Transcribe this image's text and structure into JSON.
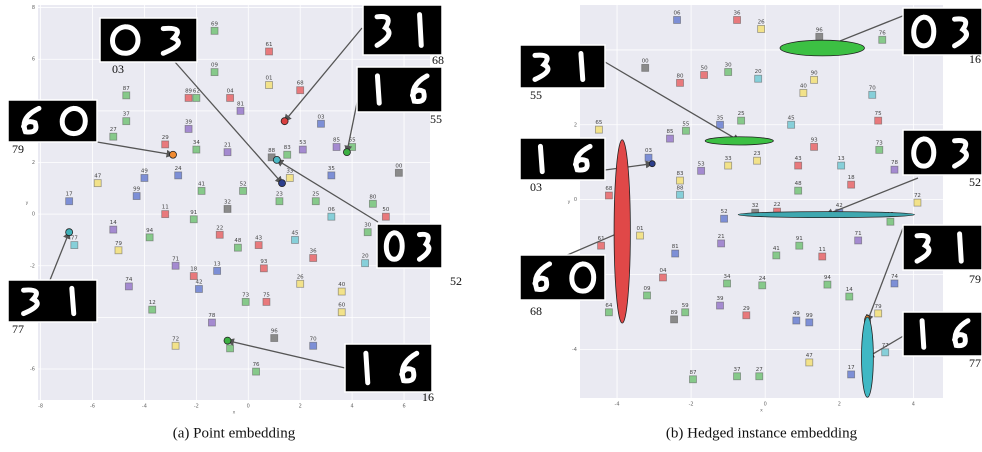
{
  "chart_data": [
    {
      "type": "scatter",
      "caption": "(a) Point embedding",
      "xlabel": "x",
      "ylabel": "y",
      "xlim": [
        -8.1,
        7
      ],
      "ylim": [
        -7.2,
        8.1
      ],
      "xticks": [
        -8,
        -6,
        -4,
        -2,
        0,
        2,
        4,
        6
      ],
      "yticks": [
        -6,
        -4,
        -2,
        0,
        2,
        4,
        6,
        8
      ],
      "grid": true,
      "labels": [
        "69",
        "61",
        "09",
        "87",
        "89",
        "62",
        "01",
        "68",
        "04",
        "81",
        "37",
        "03",
        "27",
        "39",
        "29",
        "34",
        "21",
        "85",
        "65",
        "88",
        "83",
        "53",
        "47",
        "49",
        "24",
        "33",
        "35",
        "00",
        "41",
        "52",
        "99",
        "23",
        "25",
        "80",
        "17",
        "11",
        "91",
        "32",
        "06",
        "50",
        "14",
        "94",
        "22",
        "30",
        "48",
        "43",
        "45",
        "79",
        "36",
        "20",
        "71",
        "93",
        "18",
        "13",
        "77",
        "74",
        "26",
        "42",
        "40",
        "12",
        "73",
        "75",
        "60",
        "78",
        "72",
        "96",
        "70",
        "76",
        "16"
      ],
      "x": [
        -1.3,
        0.8,
        -1.3,
        -4.7,
        -2.3,
        -2.0,
        0.8,
        2.0,
        -0.7,
        -0.3,
        -4.7,
        2.8,
        -5.2,
        -2.3,
        -3.2,
        -2.0,
        -0.8,
        3.4,
        4.0,
        0.9,
        1.5,
        2.1,
        -5.8,
        -4.0,
        -2.7,
        1.6,
        3.2,
        5.8,
        -1.8,
        -0.2,
        -4.3,
        1.2,
        2.6,
        4.8,
        -6.9,
        -3.2,
        -2.1,
        -0.8,
        3.2,
        5.3,
        -5.2,
        -3.8,
        -1.1,
        4.6,
        -0.4,
        0.4,
        1.8,
        -5.0,
        2.5,
        4.5,
        -2.8,
        0.6,
        -2.1,
        -1.2,
        -6.7,
        -4.6,
        2.0,
        -1.9,
        3.6,
        -3.7,
        -0.1,
        0.7,
        3.6,
        -1.4,
        -2.8,
        1.0,
        2.5,
        0.3,
        -0.7
      ],
      "y": [
        7.1,
        6.3,
        5.5,
        4.6,
        4.5,
        4.5,
        5.0,
        4.8,
        4.5,
        4.0,
        3.6,
        3.5,
        3.0,
        3.3,
        2.7,
        2.5,
        2.4,
        2.6,
        2.6,
        2.2,
        2.3,
        2.5,
        1.2,
        1.4,
        1.5,
        1.4,
        1.5,
        1.6,
        0.9,
        0.9,
        0.7,
        0.5,
        0.5,
        0.4,
        0.5,
        0.0,
        -0.2,
        0.2,
        -0.1,
        -0.1,
        -0.6,
        -0.9,
        -0.8,
        -0.7,
        -1.3,
        -1.2,
        -1.0,
        -1.4,
        -1.7,
        -1.9,
        -2.0,
        -2.1,
        -2.4,
        -2.2,
        -1.2,
        -2.8,
        -2.7,
        -2.9,
        -3.0,
        -3.7,
        -3.4,
        -3.4,
        -3.8,
        -4.2,
        -5.1,
        -4.8,
        -5.1,
        -6.1,
        -5.2
      ],
      "colors": [
        "#86c98a",
        "#e8797c",
        "#86c98a",
        "#86c98a",
        "#e8797c",
        "#86c98a",
        "#f2e28a",
        "#e8797c",
        "#e8797c",
        "#a48ad0",
        "#86c98a",
        "#7d8fd6",
        "#86c98a",
        "#a48ad0",
        "#e8797c",
        "#86c98a",
        "#a48ad0",
        "#a48ad0",
        "#86c98a",
        "#8a8a8a",
        "#86c98a",
        "#a48ad0",
        "#f2e28a",
        "#7d8fd6",
        "#7d8fd6",
        "#f2e28a",
        "#7d8fd6",
        "#8a8a8a",
        "#86c98a",
        "#86c98a",
        "#7d8fd6",
        "#86c98a",
        "#86c98a",
        "#86c98a",
        "#7d8fd6",
        "#e8797c",
        "#86c98a",
        "#8a8a8a",
        "#86cfd9",
        "#e8797c",
        "#a48ad0",
        "#86c98a",
        "#e8797c",
        "#86c98a",
        "#86c98a",
        "#e8797c",
        "#86cfd9",
        "#f2e28a",
        "#e8797c",
        "#86cfd9",
        "#a48ad0",
        "#e8797c",
        "#e8797c",
        "#7d8fd6",
        "#86cfd9",
        "#a48ad0",
        "#f2e28a",
        "#7d8fd6",
        "#f2e28a",
        "#86c98a",
        "#86c98a",
        "#e8797c",
        "#f2e28a",
        "#a48ad0",
        "#f2e28a",
        "#8a8a8a",
        "#7d8fd6",
        "#86c98a",
        "#86c98a"
      ],
      "highlights": [
        {
          "label": "03",
          "x": 1.3,
          "y": 1.2,
          "color": "#2c3e8c"
        },
        {
          "label": "68",
          "x": 1.4,
          "y": 3.6,
          "color": "#d94040"
        },
        {
          "label": "55",
          "x": 3.8,
          "y": 2.4,
          "color": "#3cb043"
        },
        {
          "label": "79",
          "x": -2.9,
          "y": 2.3,
          "color": "#f08a30"
        },
        {
          "label": "52",
          "x": 1.1,
          "y": 2.1,
          "color": "#4cb8c4"
        },
        {
          "label": "77",
          "x": -6.9,
          "y": -0.7,
          "color": "#3fb0b8"
        },
        {
          "label": "16",
          "x": -0.8,
          "y": -4.9,
          "color": "#3cb043"
        }
      ]
    },
    {
      "type": "scatter",
      "caption": "(b) Hedged instance embedding",
      "xlabel": "x",
      "ylabel": "y",
      "xlim": [
        -5,
        4.8
      ],
      "ylim": [
        -5.3,
        5.2
      ],
      "xticks": [
        -4,
        -2,
        0,
        2,
        4
      ],
      "yticks": [
        -4,
        -2,
        0,
        2,
        4
      ],
      "grid": true,
      "labels": [
        "06",
        "36",
        "26",
        "96",
        "76",
        "00",
        "80",
        "50",
        "30",
        "20",
        "90",
        "40",
        "70",
        "65",
        "85",
        "55",
        "35",
        "25",
        "45",
        "75",
        "93",
        "73",
        "03",
        "53",
        "33",
        "23",
        "43",
        "13",
        "78",
        "83",
        "88",
        "68",
        "18",
        "48",
        "32",
        "22",
        "42",
        "72",
        "12",
        "52",
        "01",
        "61",
        "21",
        "91",
        "71",
        "81",
        "41",
        "11",
        "04",
        "34",
        "24",
        "94",
        "74",
        "09",
        "64",
        "59",
        "89",
        "39",
        "29",
        "49",
        "99",
        "14",
        "79",
        "77",
        "47",
        "17",
        "87",
        "37",
        "27"
      ],
      "x": [
        -2.38,
        -0.76,
        -0.11,
        1.46,
        3.16,
        -3.24,
        -2.3,
        -1.65,
        -1.0,
        -0.19,
        1.32,
        1.03,
        2.89,
        -4.49,
        -2.57,
        -2.14,
        -1.22,
        -0.65,
        0.7,
        3.05,
        1.32,
        3.08,
        -3.15,
        -1.73,
        -1.0,
        -0.22,
        0.89,
        2.05,
        3.49,
        -2.3,
        -2.3,
        -4.22,
        2.32,
        0.89,
        -0.27,
        0.32,
        2.0,
        4.11,
        3.38,
        -1.11,
        -3.38,
        -4.43,
        -1.19,
        0.92,
        2.51,
        -2.43,
        0.3,
        1.54,
        -2.76,
        -1.03,
        -0.08,
        1.68,
        3.49,
        -3.19,
        -4.22,
        -2.16,
        -2.46,
        -1.22,
        -0.51,
        0.84,
        1.19,
        2.27,
        3.05,
        3.24,
        1.19,
        2.32,
        -1.95,
        -0.76,
        -0.16
      ],
      "y": [
        4.8,
        4.8,
        4.56,
        4.35,
        4.27,
        3.52,
        3.12,
        3.33,
        3.41,
        3.23,
        3.2,
        2.85,
        2.8,
        1.87,
        1.63,
        1.84,
        2.0,
        2.11,
        2.0,
        2.11,
        1.41,
        1.33,
        1.12,
        0.77,
        0.91,
        1.04,
        0.91,
        0.91,
        0.8,
        0.51,
        0.13,
        0.11,
        0.4,
        0.24,
        -0.35,
        -0.32,
        -0.35,
        -0.08,
        -0.59,
        -0.51,
        -0.96,
        -1.23,
        -1.17,
        -1.23,
        -1.09,
        -1.44,
        -1.49,
        -1.52,
        -2.08,
        -2.24,
        -2.29,
        -2.27,
        -2.24,
        -2.56,
        -3.01,
        -3.01,
        -3.2,
        -2.83,
        -3.09,
        -3.23,
        -3.28,
        -2.59,
        -3.04,
        -4.08,
        -4.35,
        -4.67,
        -4.8,
        -4.72,
        -4.72
      ],
      "colors": [
        "#7d8fd6",
        "#e8797c",
        "#f2e28a",
        "#8a8a8a",
        "#86c98a",
        "#8a8a8a",
        "#e8797c",
        "#e8797c",
        "#86c98a",
        "#86cfd9",
        "#f2e28a",
        "#f2e28a",
        "#86cfd9",
        "#f2e28a",
        "#a48ad0",
        "#86c98a",
        "#7d8fd6",
        "#86c98a",
        "#86cfd9",
        "#e8797c",
        "#e8797c",
        "#86c98a",
        "#7d8fd6",
        "#a48ad0",
        "#f2e28a",
        "#f2e28a",
        "#e8797c",
        "#86cfd9",
        "#a48ad0",
        "#f2e28a",
        "#86cfd9",
        "#e8797c",
        "#e8797c",
        "#86c98a",
        "#8a8a8a",
        "#e8797c",
        "#7d8fd6",
        "#f2e28a",
        "#86c98a",
        "#7d8fd6",
        "#f2e28a",
        "#e8797c",
        "#a48ad0",
        "#86c98a",
        "#a48ad0",
        "#7d8fd6",
        "#86c98a",
        "#e8797c",
        "#e8797c",
        "#86c98a",
        "#86c98a",
        "#86c98a",
        "#7d8fd6",
        "#86c98a",
        "#86c98a",
        "#86c98a",
        "#8a8a8a",
        "#a48ad0",
        "#e8797c",
        "#7d8fd6",
        "#7d8fd6",
        "#86c98a",
        "#f2e28a",
        "#86cfd9",
        "#f2e28a",
        "#7d8fd6",
        "#86c98a",
        "#86c98a",
        "#86c98a"
      ],
      "highlights": [
        {
          "label": "16",
          "x": 1.54,
          "y": 4.05,
          "rx": 1.14,
          "ry": 0.21,
          "color": "#3cc043"
        },
        {
          "label": "55",
          "x": -0.7,
          "y": 1.57,
          "rx": 0.92,
          "ry": 0.11,
          "color": "#3cc043"
        },
        {
          "label": "03",
          "x": -3.05,
          "y": 0.96,
          "rx": 0.08,
          "ry": 0.08,
          "color": "#2c3e8c"
        },
        {
          "label": "68",
          "x": -3.86,
          "y": -0.85,
          "rx": 0.22,
          "ry": 2.45,
          "color": "#e04848"
        },
        {
          "label": "52",
          "x": 1.65,
          "y": -0.4,
          "rx": 2.38,
          "ry": 0.08,
          "color": "#3fa8b0"
        },
        {
          "label": "79",
          "x": 2.76,
          "y": -3.25,
          "rx": 0.08,
          "ry": 0.16,
          "color": "#f08a30"
        },
        {
          "label": "77",
          "x": 2.76,
          "y": -4.21,
          "rx": 0.16,
          "ry": 1.07,
          "color": "#3fb8c4"
        }
      ]
    }
  ]
}
